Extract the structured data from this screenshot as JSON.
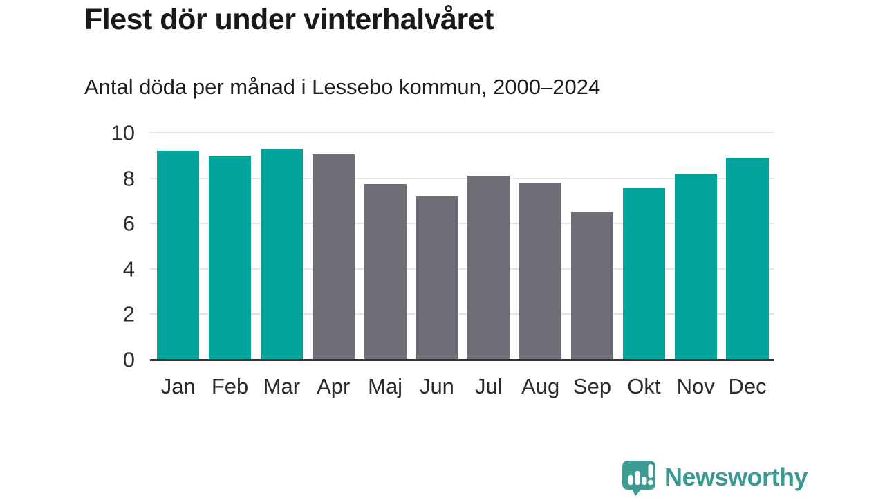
{
  "header": {
    "title": "Flest dör under vinterhalvåret",
    "subtitle": "Antal döda per månad i Lessebo kommun, 2000–2024"
  },
  "chart_data": {
    "type": "bar",
    "title": "Flest dör under vinterhalvåret",
    "subtitle": "Antal döda per månad i Lessebo kommun, 2000–2024",
    "categories": [
      "Jan",
      "Feb",
      "Mar",
      "Apr",
      "Maj",
      "Jun",
      "Jul",
      "Aug",
      "Sep",
      "Okt",
      "Nov",
      "Dec"
    ],
    "values": [
      9.2,
      9.0,
      9.3,
      9.05,
      7.75,
      7.2,
      8.1,
      7.8,
      6.5,
      7.55,
      8.2,
      8.9
    ],
    "bar_colors": [
      "#00a49b",
      "#00a49b",
      "#00a49b",
      "#6e6e76",
      "#6e6e76",
      "#6e6e76",
      "#6e6e76",
      "#6e6e76",
      "#6e6e76",
      "#00a49b",
      "#00a49b",
      "#00a49b"
    ],
    "highlight_months": [
      "Jan",
      "Feb",
      "Mar",
      "Okt",
      "Nov",
      "Dec"
    ],
    "highlight_color": "#00a49b",
    "base_color": "#6e6e76",
    "xlabel": "",
    "ylabel": "",
    "ylim": [
      0,
      10
    ],
    "yticks": [
      0,
      2,
      4,
      6,
      8,
      10
    ],
    "grid": "horizontal",
    "legend": "none"
  },
  "colors": {
    "title": "#191919",
    "axis_text": "#2b2b2b",
    "gridline": "#e4e4e4",
    "axis_line": "#333333",
    "brand": "#3a9a91"
  },
  "footer": {
    "brand": "Newsworthy",
    "logo_icon": "newsworthy-speech-bubble-bar-chart-icon"
  }
}
